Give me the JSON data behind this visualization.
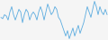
{
  "values": [
    0,
    -0.5,
    1,
    0.5,
    -1,
    2,
    4,
    1,
    -1,
    1,
    3,
    2,
    -2,
    1,
    3,
    2,
    -1,
    1,
    2,
    1,
    -1,
    2,
    4,
    2,
    -1,
    2,
    5,
    3,
    1,
    2,
    4,
    3,
    0,
    -1,
    -3,
    -5,
    -7,
    -5,
    -8,
    -6,
    -4,
    -7,
    -5,
    -3,
    -6,
    -4,
    -2,
    1,
    4,
    2,
    0,
    3,
    6,
    4,
    1,
    4,
    2,
    1,
    3,
    1
  ],
  "line_color": "#5aabdf",
  "bg_color": "#f5f5f5",
  "linewidth": 0.6
}
